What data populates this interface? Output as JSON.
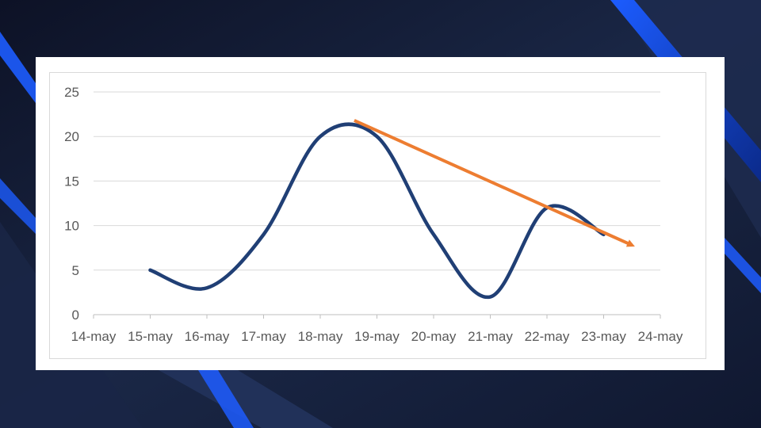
{
  "slide": {
    "background_colors": [
      "#0e1428",
      "#1c2a4d",
      "#1f6fff"
    ]
  },
  "chart_data": {
    "type": "line",
    "title": "",
    "xlabel": "",
    "ylabel": "",
    "x": [
      "14-may",
      "15-may",
      "16-may",
      "17-may",
      "18-may",
      "19-may",
      "20-may",
      "21-may",
      "22-may",
      "23-may",
      "24-may"
    ],
    "ylim": [
      0,
      25
    ],
    "yticks": [
      "0",
      "5",
      "10",
      "15",
      "20",
      "25"
    ],
    "grid": true,
    "legend": "none",
    "series": [
      {
        "color": "#203f75",
        "points": [
          {
            "x": "15-may",
            "y": 5
          },
          {
            "x": "16-may",
            "y": 3
          },
          {
            "x": "17-may",
            "y": 9
          },
          {
            "x": "18-may",
            "y": 20
          },
          {
            "x": "19-may",
            "y": 20
          },
          {
            "x": "20-may",
            "y": 9
          },
          {
            "x": "21-may",
            "y": 2
          },
          {
            "x": "22-may",
            "y": 12
          },
          {
            "x": "23-may",
            "y": 9
          }
        ]
      }
    ],
    "annotations": [
      {
        "type": "trend-arrow",
        "color": "#ed7d31",
        "from": {
          "x": "18.6-may",
          "y": 21.8
        },
        "to": {
          "x": "23.5-may",
          "y": 7.8
        }
      }
    ]
  }
}
